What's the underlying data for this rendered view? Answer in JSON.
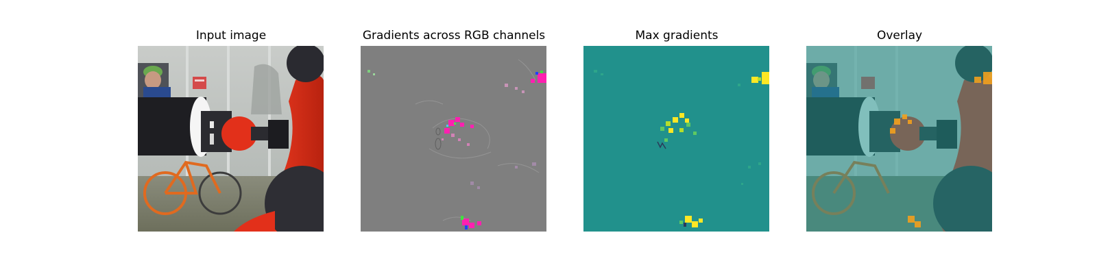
{
  "figure": {
    "panels": [
      {
        "title": "Input image"
      },
      {
        "title": "Gradients across RGB channels"
      },
      {
        "title": "Max gradients"
      },
      {
        "title": "Overlay"
      }
    ]
  },
  "colors": {
    "gradient_gray": "#7f7f7f",
    "gradient_magenta": "#ff20b0",
    "max_grad_background": "#21918c",
    "max_grad_hot": "#fde725",
    "robot_red": "#e2301a",
    "gripper_black": "#1e1e22"
  }
}
